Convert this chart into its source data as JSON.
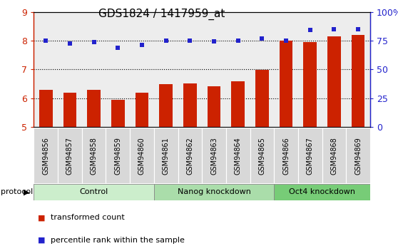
{
  "title": "GDS1824 / 1417959_at",
  "samples": [
    "GSM94856",
    "GSM94857",
    "GSM94858",
    "GSM94859",
    "GSM94860",
    "GSM94861",
    "GSM94862",
    "GSM94863",
    "GSM94864",
    "GSM94865",
    "GSM94866",
    "GSM94867",
    "GSM94868",
    "GSM94869"
  ],
  "bar_values": [
    6.28,
    6.18,
    6.28,
    5.95,
    6.18,
    6.48,
    6.52,
    6.42,
    6.58,
    6.98,
    8.02,
    7.95,
    8.15,
    8.2
  ],
  "dot_values": [
    8.0,
    7.9,
    7.95,
    7.75,
    7.85,
    8.02,
    8.02,
    7.98,
    8.0,
    8.08,
    8.01,
    8.38,
    8.4,
    8.42
  ],
  "bar_color": "#cc2200",
  "dot_color": "#2222cc",
  "ylim_left": [
    5,
    9
  ],
  "ylim_right": [
    0,
    100
  ],
  "yticks_left": [
    5,
    6,
    7,
    8,
    9
  ],
  "yticks_right": [
    0,
    25,
    50,
    75,
    100
  ],
  "yticklabels_right": [
    "0",
    "25",
    "50",
    "75",
    "100%"
  ],
  "groups": [
    {
      "label": "Control",
      "start": 0,
      "end": 5,
      "color": "#cceecc"
    },
    {
      "label": "Nanog knockdown",
      "start": 5,
      "end": 10,
      "color": "#aaddaa"
    },
    {
      "label": "Oct4 knockdown",
      "start": 10,
      "end": 14,
      "color": "#77cc77"
    }
  ],
  "protocol_label": "protocol",
  "legend_bar_label": "transformed count",
  "legend_dot_label": "percentile rank within the sample",
  "bar_width": 0.55,
  "sample_box_color": "#dddddd",
  "plot_border_color": "#000000"
}
